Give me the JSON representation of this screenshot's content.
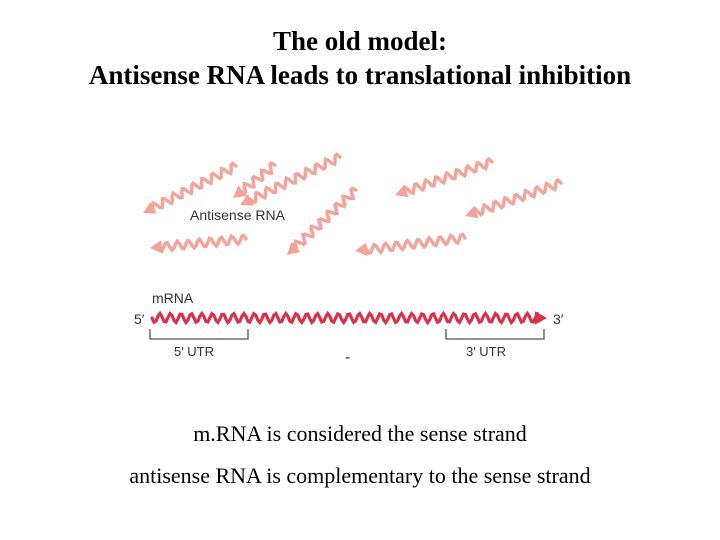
{
  "title": {
    "line1": "The old model:",
    "line2": "Antisense RNA leads to translational inhibition"
  },
  "diagram": {
    "antisense_label": "Antisense RNA",
    "mrna_label": "mRNA",
    "five_prime_end": "5′",
    "three_prime_end": "3′",
    "five_utr_label": "5′ UTR",
    "three_utr_label": "3′ UTR",
    "mark": "-",
    "colors": {
      "antisense": "#f2a39a",
      "mrna": "#d8314a",
      "bracket": "#555555"
    },
    "antisense_strand_count": 8
  },
  "captions": {
    "line1": "m.RNA is considered the sense strand",
    "line2": "antisense RNA is complementary to the sense strand"
  }
}
